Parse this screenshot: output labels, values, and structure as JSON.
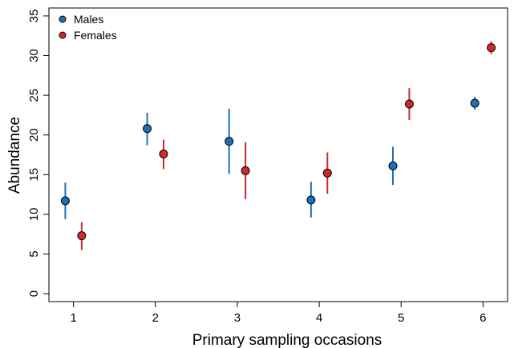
{
  "chart_data": {
    "type": "scatter",
    "title": "",
    "xlabel": "Primary sampling occasions",
    "ylabel": "Abundance",
    "x_ticks": [
      1,
      2,
      3,
      4,
      5,
      6
    ],
    "y_ticks": [
      0,
      5,
      10,
      15,
      20,
      25,
      30,
      35
    ],
    "xlim": [
      0.7,
      6.3
    ],
    "ylim": [
      -1,
      36
    ],
    "grid": false,
    "legend_position": "top-left",
    "group_offset": 0.1,
    "series": [
      {
        "name": "Males",
        "color": "#1f6fb4",
        "points": [
          {
            "x": 1,
            "y": 11.7,
            "lower": 9.4,
            "upper": 14.0
          },
          {
            "x": 2,
            "y": 20.8,
            "lower": 18.7,
            "upper": 22.8
          },
          {
            "x": 3,
            "y": 19.2,
            "lower": 15.1,
            "upper": 23.3
          },
          {
            "x": 4,
            "y": 11.8,
            "lower": 9.6,
            "upper": 14.1
          },
          {
            "x": 5,
            "y": 16.1,
            "lower": 13.7,
            "upper": 18.5
          },
          {
            "x": 6,
            "y": 24.0,
            "lower": 23.2,
            "upper": 24.8
          }
        ]
      },
      {
        "name": "Females",
        "color": "#d0282c",
        "points": [
          {
            "x": 1,
            "y": 7.3,
            "lower": 5.5,
            "upper": 9.0
          },
          {
            "x": 2,
            "y": 17.6,
            "lower": 15.7,
            "upper": 19.4
          },
          {
            "x": 3,
            "y": 15.5,
            "lower": 11.9,
            "upper": 19.1
          },
          {
            "x": 4,
            "y": 15.2,
            "lower": 12.6,
            "upper": 17.8
          },
          {
            "x": 5,
            "y": 23.9,
            "lower": 21.9,
            "upper": 25.9
          },
          {
            "x": 6,
            "y": 31.0,
            "lower": 30.2,
            "upper": 31.8
          }
        ]
      }
    ]
  }
}
